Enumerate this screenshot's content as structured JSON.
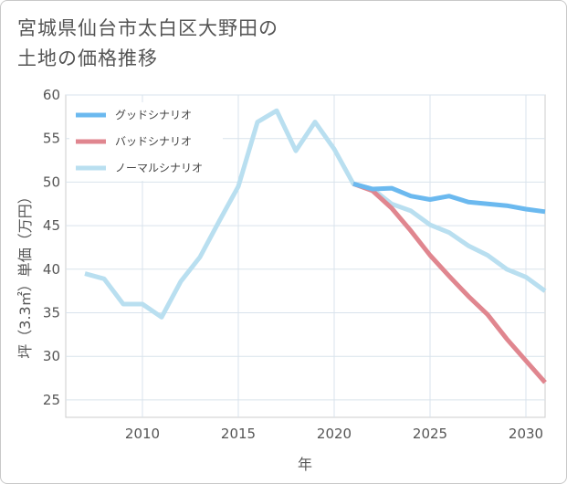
{
  "title_lines": [
    "宮城県仙台市太白区大野田の",
    "土地の価格推移"
  ],
  "chart_data": {
    "type": "line",
    "xlabel": "年",
    "ylabel": "坪（3.3㎡）単価（万円）",
    "xlim": [
      2006,
      2031
    ],
    "ylim": [
      23,
      60
    ],
    "x_ticks": [
      2010,
      2015,
      2020,
      2025,
      2030
    ],
    "y_ticks": [
      25,
      30,
      35,
      40,
      45,
      50,
      55,
      60
    ],
    "grid": true,
    "legend_position": "top-left",
    "series": [
      {
        "name": "グッドシナリオ",
        "color": "#6bb9ef",
        "x": [
          2021,
          2022,
          2023,
          2024,
          2025,
          2026,
          2027,
          2028,
          2029,
          2030,
          2031
        ],
        "y": [
          49.8,
          49.2,
          49.3,
          48.4,
          48.0,
          48.4,
          47.7,
          47.5,
          47.3,
          46.9,
          46.6
        ]
      },
      {
        "name": "バッドシナリオ",
        "color": "#e0868f",
        "x": [
          2021,
          2022,
          2023,
          2024,
          2025,
          2026,
          2027,
          2028,
          2029,
          2030,
          2031
        ],
        "y": [
          49.8,
          49.0,
          47.0,
          44.4,
          41.6,
          39.2,
          36.9,
          34.8,
          32.0,
          29.5,
          27.0
        ]
      },
      {
        "name": "ノーマルシナリオ",
        "color": "#b9dff0",
        "x": [
          2007,
          2008,
          2009,
          2010,
          2011,
          2012,
          2013,
          2014,
          2015,
          2016,
          2017,
          2018,
          2019,
          2020,
          2021,
          2022,
          2023,
          2024,
          2025,
          2026,
          2027,
          2028,
          2029,
          2030,
          2031
        ],
        "y": [
          39.5,
          38.9,
          36.0,
          36.0,
          34.5,
          38.6,
          41.4,
          45.5,
          49.5,
          56.9,
          58.2,
          53.6,
          56.9,
          53.8,
          49.8,
          49.2,
          47.5,
          46.7,
          45.1,
          44.2,
          42.7,
          41.6,
          40.0,
          39.1,
          37.5
        ]
      }
    ]
  }
}
